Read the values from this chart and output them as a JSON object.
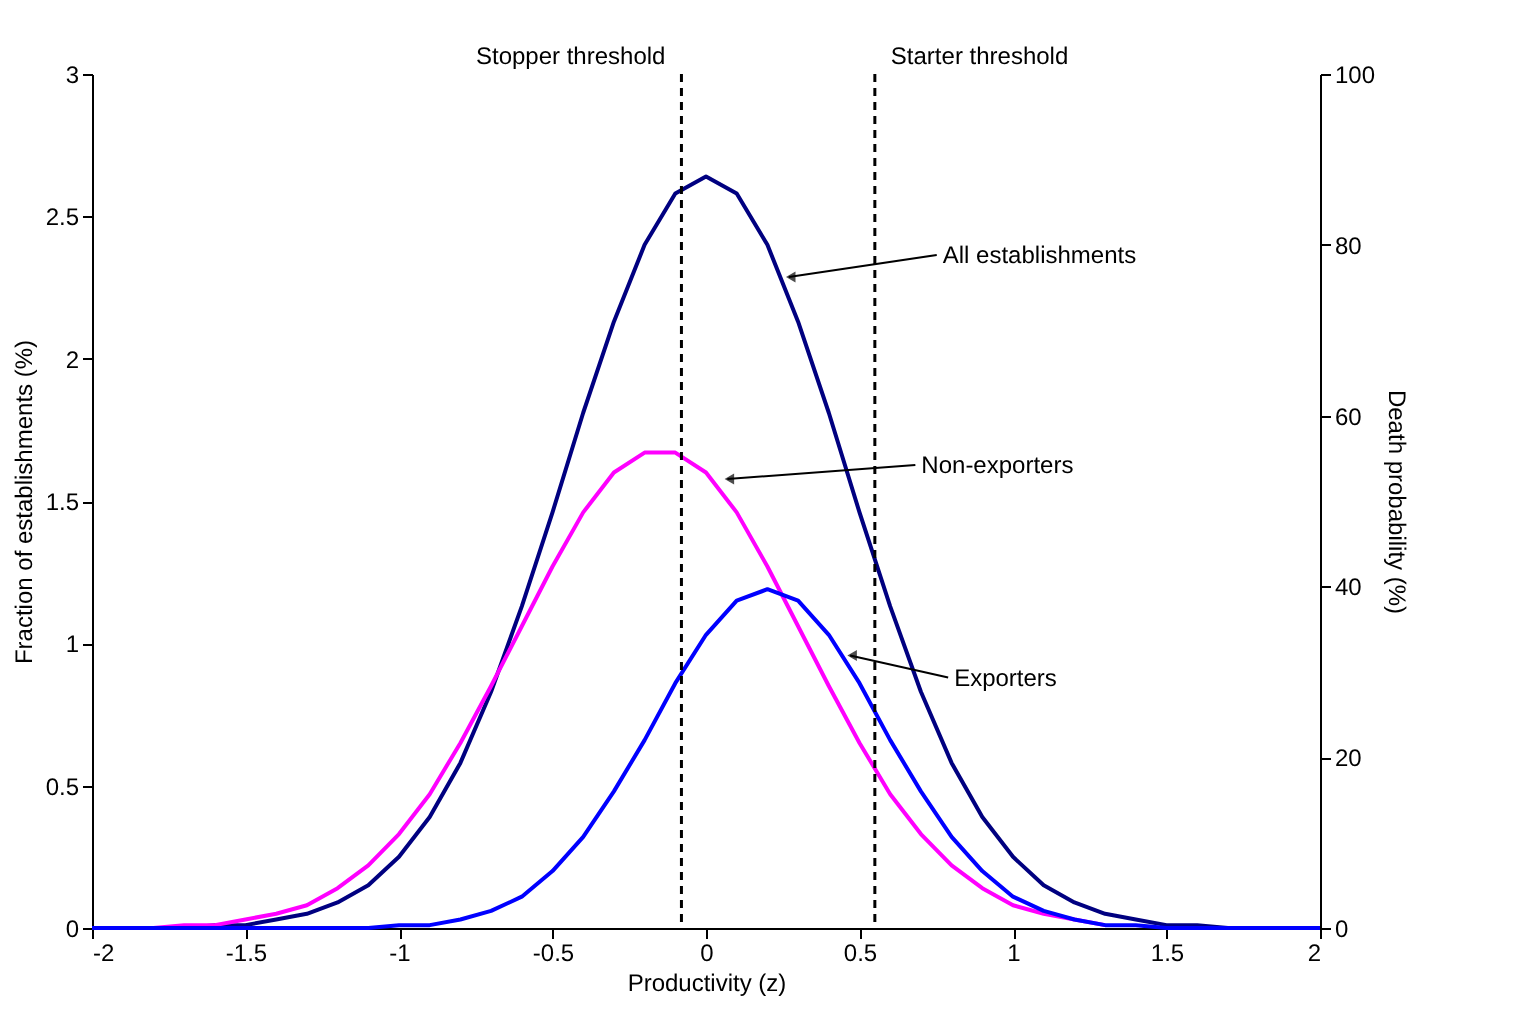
{
  "chart_data": {
    "type": "line",
    "x": [
      -2,
      -1.9,
      -1.8,
      -1.7,
      -1.6,
      -1.5,
      -1.4,
      -1.3,
      -1.2,
      -1.1,
      -1,
      -0.9,
      -0.8,
      -0.7,
      -0.6,
      -0.5,
      -0.4,
      -0.3,
      -0.2,
      -0.1,
      0,
      0.1,
      0.2,
      0.3,
      0.4,
      0.5,
      0.6,
      0.7,
      0.8,
      0.9,
      1,
      1.1,
      1.2,
      1.3,
      1.4,
      1.5,
      1.6,
      1.7,
      1.8,
      1.9,
      2
    ],
    "series": [
      {
        "color": "#000080",
        "values": [
          null,
          null,
          null,
          0,
          0.01,
          0.01,
          0.03,
          0.05,
          0.09,
          0.15,
          0.25,
          0.39,
          0.58,
          0.83,
          1.13,
          1.46,
          1.81,
          2.13,
          2.4,
          2.58,
          2.64,
          2.58,
          2.4,
          2.13,
          1.81,
          1.46,
          1.13,
          0.83,
          0.58,
          0.39,
          0.25,
          0.15,
          0.09,
          0.05,
          0.03,
          0.01,
          0.01,
          0,
          0,
          null,
          null
        ]
      },
      {
        "color": "#ff00ff",
        "values": [
          0,
          0,
          0,
          0.01,
          0.01,
          0.03,
          0.05,
          0.08,
          0.14,
          0.22,
          0.33,
          0.47,
          0.65,
          0.85,
          1.06,
          1.27,
          1.46,
          1.6,
          1.67,
          1.67,
          1.6,
          1.46,
          1.27,
          1.06,
          0.85,
          0.65,
          0.47,
          0.33,
          0.22,
          0.14,
          0.08,
          0.05,
          0.03,
          0.01,
          null,
          null,
          null,
          null,
          null,
          null,
          null
        ]
      },
      {
        "color": "#0000ff",
        "values": [
          0,
          0,
          0,
          0,
          0,
          0,
          0,
          0,
          0,
          0,
          0.01,
          0.01,
          0.03,
          0.06,
          0.11,
          0.2,
          0.32,
          0.48,
          0.66,
          0.86,
          1.03,
          1.15,
          1.19,
          1.15,
          1.03,
          0.86,
          0.66,
          0.48,
          0.32,
          0.2,
          0.11,
          0.06,
          0.03,
          0.01,
          0.01,
          0,
          0,
          0,
          0,
          0,
          0
        ]
      }
    ],
    "xlabel": "Productivity (z)",
    "ylabel": "Fraction of establishments (%)",
    "y2label": "Death probability (%)",
    "xlim": [
      -2,
      2
    ],
    "xticks": [
      -2,
      -1.5,
      -1,
      -0.5,
      0,
      0.5,
      1,
      1.5,
      2
    ],
    "ylim": [
      0,
      3
    ],
    "yticks": [
      0,
      0.5,
      1,
      1.5,
      2,
      2.5,
      3
    ],
    "y2lim": [
      0,
      100
    ],
    "y2ticks": [
      0,
      20,
      40,
      60,
      80,
      100
    ],
    "ref_lines": [
      {
        "axis": "x",
        "value": -0.08,
        "label": "Stopper threshold",
        "color": "#000000",
        "line_style": "dashed"
      },
      {
        "axis": "x",
        "value": 0.55,
        "label": "Starter threshold",
        "color": "#000000",
        "line_style": "dashed"
      }
    ],
    "annotations": [
      {
        "text": "All establishments",
        "x": 0.25,
        "y": 2.28
      },
      {
        "text": "Non-exporters",
        "x": 0.05,
        "y": 1.57
      },
      {
        "text": "Exporters",
        "x": 0.45,
        "y": 0.95
      }
    ],
    "grid": false,
    "legend": false,
    "marker": "none",
    "line_style": "solid"
  }
}
